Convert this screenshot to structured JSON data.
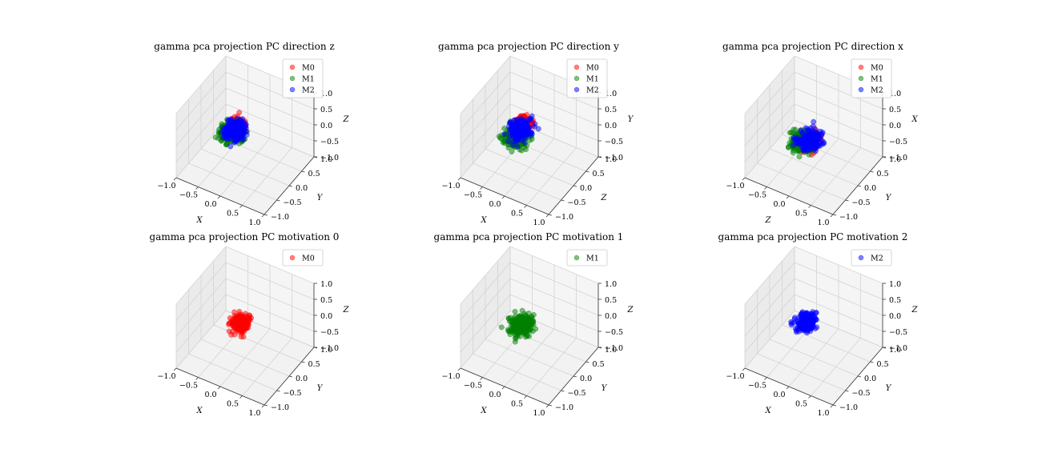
{
  "chart_data": [
    {
      "type": "scatter3d",
      "title": "gamma pca projection PC direction z",
      "axis_labels": {
        "x": "X",
        "y": "Y",
        "z": "Z"
      },
      "ticks": [
        "−1.0",
        "−0.5",
        "0.0",
        "0.5",
        "1.0"
      ],
      "xlim": [
        -1,
        1
      ],
      "ylim": [
        -1,
        1
      ],
      "zlim": [
        -1,
        1
      ],
      "legend": [
        "M0",
        "M1",
        "M2"
      ],
      "legend_position": "top-right",
      "series": [
        {
          "name": "M0",
          "color": "#ff0000",
          "cloud": {
            "x": [
              -0.45,
              0.05
            ],
            "y": [
              -0.3,
              0.3
            ],
            "z": [
              -0.2,
              0.45
            ]
          }
        },
        {
          "name": "M1",
          "color": "#008000",
          "cloud": {
            "x": [
              -0.6,
              0.1
            ],
            "y": [
              -0.5,
              0.3
            ],
            "z": [
              -0.25,
              0.2
            ]
          }
        },
        {
          "name": "M2",
          "color": "#0000ff",
          "cloud": {
            "x": [
              -0.5,
              0.1
            ],
            "y": [
              -0.4,
              0.35
            ],
            "z": [
              -0.25,
              0.35
            ]
          }
        }
      ]
    },
    {
      "type": "scatter3d",
      "title": "gamma pca projection PC direction y",
      "axis_labels": {
        "x": "X",
        "y": "Z",
        "z": "Y"
      },
      "ticks": [
        "−1.0",
        "−0.5",
        "0.0",
        "0.5",
        "1.0"
      ],
      "xlim": [
        -1,
        1
      ],
      "ylim": [
        -1,
        1
      ],
      "zlim": [
        -1,
        1
      ],
      "legend": [
        "M0",
        "M1",
        "M2"
      ],
      "legend_position": "top-right",
      "series": [
        {
          "name": "M0",
          "color": "#ff0000",
          "cloud": {
            "x": [
              -0.35,
              0.05
            ],
            "y": [
              -0.2,
              0.3
            ],
            "z": [
              0.0,
              0.45
            ]
          }
        },
        {
          "name": "M1",
          "color": "#008000",
          "cloud": {
            "x": [
              -0.6,
              0.1
            ],
            "y": [
              -0.5,
              0.3
            ],
            "z": [
              -0.35,
              0.15
            ]
          }
        },
        {
          "name": "M2",
          "color": "#0000ff",
          "cloud": {
            "x": [
              -0.5,
              0.1
            ],
            "y": [
              -0.4,
              0.35
            ],
            "z": [
              -0.25,
              0.4
            ]
          }
        }
      ]
    },
    {
      "type": "scatter3d",
      "title": "gamma pca projection PC direction x",
      "axis_labels": {
        "x": "Z",
        "y": "Y",
        "z": "X"
      },
      "ticks": [
        "−1.0",
        "−0.5",
        "0.0",
        "0.5",
        "1.0"
      ],
      "xlim": [
        -1,
        1
      ],
      "ylim": [
        -1,
        1
      ],
      "zlim": [
        -1,
        1
      ],
      "legend": [
        "M0",
        "M1",
        "M2"
      ],
      "legend_position": "top-right",
      "series": [
        {
          "name": "M0",
          "color": "#ff0000",
          "cloud": {
            "x": [
              -0.35,
              0.15
            ],
            "y": [
              -0.3,
              0.35
            ],
            "z": [
              -0.55,
              0.0
            ]
          }
        },
        {
          "name": "M1",
          "color": "#008000",
          "cloud": {
            "x": [
              -0.6,
              0.15
            ],
            "y": [
              -0.45,
              0.35
            ],
            "z": [
              -0.55,
              0.0
            ]
          }
        },
        {
          "name": "M2",
          "color": "#0000ff",
          "cloud": {
            "x": [
              -0.45,
              0.25
            ],
            "y": [
              -0.4,
              0.45
            ],
            "z": [
              -0.5,
              0.0
            ]
          }
        }
      ]
    },
    {
      "type": "scatter3d",
      "title": "gamma pca projection PC motivation 0",
      "axis_labels": {
        "x": "X",
        "y": "Y",
        "z": "Z"
      },
      "ticks": [
        "−1.0",
        "−0.5",
        "0.0",
        "0.5",
        "1.0"
      ],
      "xlim": [
        -1,
        1
      ],
      "ylim": [
        -1,
        1
      ],
      "zlim": [
        -1,
        1
      ],
      "legend": [
        "M0"
      ],
      "legend_position": "top-right",
      "series": [
        {
          "name": "M0",
          "color": "#ff0000",
          "cloud": {
            "x": [
              -0.35,
              0.15
            ],
            "y": [
              -0.3,
              0.3
            ],
            "z": [
              -0.3,
              0.35
            ]
          }
        }
      ]
    },
    {
      "type": "scatter3d",
      "title": "gamma pca projection PC motivation 1",
      "axis_labels": {
        "x": "X",
        "y": "Y",
        "z": "Z"
      },
      "ticks": [
        "−1.0",
        "−0.5",
        "0.0",
        "0.5",
        "1.0"
      ],
      "xlim": [
        -1,
        1
      ],
      "ylim": [
        -1,
        1
      ],
      "zlim": [
        -1,
        1
      ],
      "legend": [
        "M1"
      ],
      "legend_position": "top-right",
      "series": [
        {
          "name": "M1",
          "color": "#008000",
          "cloud": {
            "x": [
              -0.55,
              0.2
            ],
            "y": [
              -0.45,
              0.45
            ],
            "z": [
              -0.3,
              0.15
            ]
          }
        }
      ]
    },
    {
      "type": "scatter3d",
      "title": "gamma pca projection PC motivation 2",
      "axis_labels": {
        "x": "X",
        "y": "Y",
        "z": "Z"
      },
      "ticks": [
        "−1.0",
        "−0.5",
        "0.0",
        "0.5",
        "1.0"
      ],
      "xlim": [
        -1,
        1
      ],
      "ylim": [
        -1,
        1
      ],
      "zlim": [
        -1,
        1
      ],
      "legend": [
        "M2"
      ],
      "legend_position": "top-right",
      "series": [
        {
          "name": "M2",
          "color": "#0000ff",
          "cloud": {
            "x": [
              -0.45,
              0.1
            ],
            "y": [
              -0.35,
              0.35
            ],
            "z": [
              -0.25,
              0.25
            ]
          }
        }
      ]
    }
  ]
}
